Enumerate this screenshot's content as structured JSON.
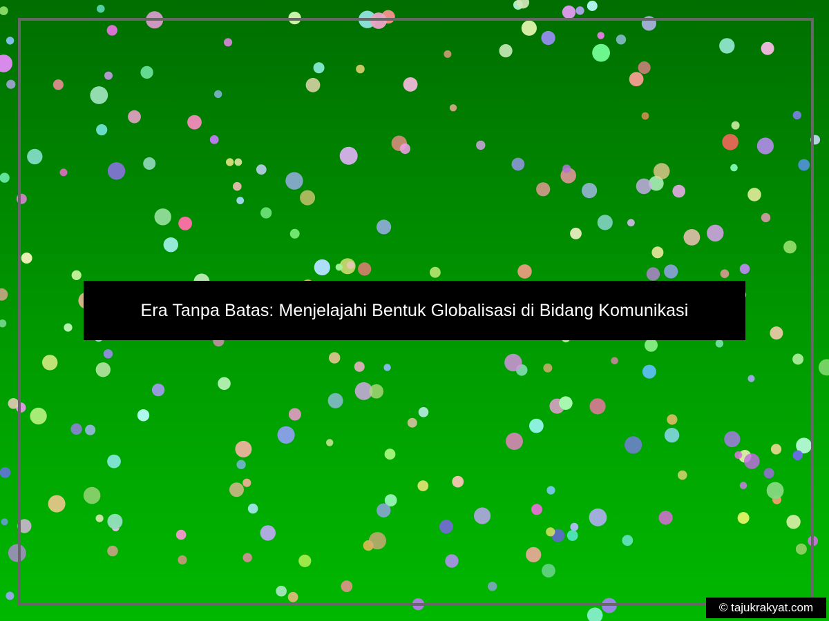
{
  "banner": {
    "title": "Era Tanpa Batas: Menjelajahi Bentuk Globalisasi di Bidang Komunikasi"
  },
  "watermark": {
    "text": "© tajukrakyat.com"
  },
  "colors": {
    "background_top": "#006e00",
    "background_bottom": "#00b800",
    "frame": "#676767",
    "banner_bg": "#000000",
    "banner_text": "#ffffff"
  }
}
